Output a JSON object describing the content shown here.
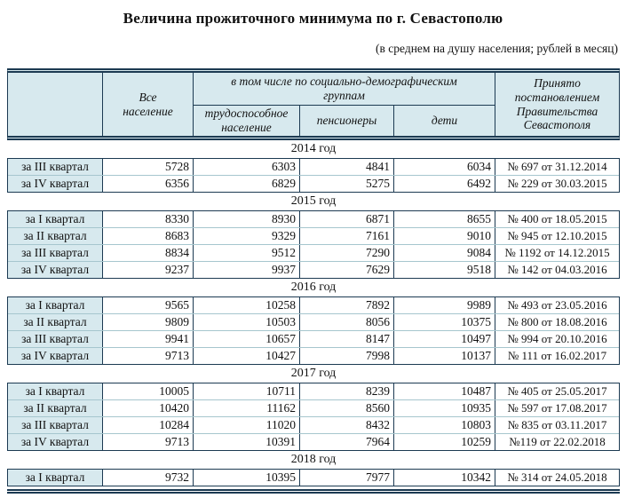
{
  "title": "Величина прожиточного минимума по г. Севастополю",
  "subtitle": "(в среднем на душу населения; рублей в месяц)",
  "colors": {
    "header_bg": "#d7e9ee",
    "border_dark": "#1c3a52",
    "row_separator": "#a6c6ce",
    "text": "#111111"
  },
  "table": {
    "headers": {
      "all_population": "Все население",
      "group_header": "в том числе по социально-демографическим группам",
      "working": "трудоспособное население",
      "pensioners": "пенсионеры",
      "children": "дети",
      "decree": "Принято постановлением Правительства Севастополя"
    },
    "sections": [
      {
        "year": "2014 год",
        "rows": [
          {
            "quarter": "за III квартал",
            "all": "5728",
            "working": "6303",
            "pensioners": "4841",
            "children": "6034",
            "decree": "№ 697 от 31.12.2014"
          },
          {
            "quarter": "за IV квартал",
            "all": "6356",
            "working": "6829",
            "pensioners": "5275",
            "children": "6492",
            "decree": "№ 229 от 30.03.2015"
          }
        ]
      },
      {
        "year": "2015 год",
        "rows": [
          {
            "quarter": "за I квартал",
            "all": "8330",
            "working": "8930",
            "pensioners": "6871",
            "children": "8655",
            "decree": "№ 400 от 18.05.2015"
          },
          {
            "quarter": "за II квартал",
            "all": "8683",
            "working": "9329",
            "pensioners": "7161",
            "children": "9010",
            "decree": "№ 945 от 12.10.2015"
          },
          {
            "quarter": "за III квартал",
            "all": "8834",
            "working": "9512",
            "pensioners": "7290",
            "children": "9084",
            "decree": "№ 1192 от 14.12.2015"
          },
          {
            "quarter": "за IV квартал",
            "all": "9237",
            "working": "9937",
            "pensioners": "7629",
            "children": "9518",
            "decree": "№ 142 от 04.03.2016"
          }
        ]
      },
      {
        "year": "2016 год",
        "rows": [
          {
            "quarter": "за I квартал",
            "all": "9565",
            "working": "10258",
            "pensioners": "7892",
            "children": "9989",
            "decree": "№ 493 от 23.05.2016"
          },
          {
            "quarter": "за II квартал",
            "all": "9809",
            "working": "10503",
            "pensioners": "8056",
            "children": "10375",
            "decree": "№ 800 от 18.08.2016"
          },
          {
            "quarter": "за III квартал",
            "all": "9941",
            "working": "10657",
            "pensioners": "8147",
            "children": "10497",
            "decree": "№ 994 от 20.10.2016"
          },
          {
            "quarter": "за IV квартал",
            "all": "9713",
            "working": "10427",
            "pensioners": "7998",
            "children": "10137",
            "decree": "№ 111 от 16.02.2017"
          }
        ]
      },
      {
        "year": "2017 год",
        "rows": [
          {
            "quarter": "за I квартал",
            "all": "10005",
            "working": "10711",
            "pensioners": "8239",
            "children": "10487",
            "decree": "№ 405 от 25.05.2017"
          },
          {
            "quarter": "за II квартал",
            "all": "10420",
            "working": "11162",
            "pensioners": "8560",
            "children": "10935",
            "decree": "№ 597 от 17.08.2017"
          },
          {
            "quarter": "за III квартал",
            "all": "10284",
            "working": "11020",
            "pensioners": "8432",
            "children": "10803",
            "decree": "№ 835 от 03.11.2017"
          },
          {
            "quarter": "за IV квартал",
            "all": "9713",
            "working": "10391",
            "pensioners": "7964",
            "children": "10259",
            "decree": "№119 от 22.02.2018"
          }
        ]
      },
      {
        "year": "2018 год",
        "rows": [
          {
            "quarter": "за I квартал",
            "all": "9732",
            "working": "10395",
            "pensioners": "7977",
            "children": "10342",
            "decree": "№ 314 от 24.05.2018"
          }
        ]
      }
    ]
  }
}
